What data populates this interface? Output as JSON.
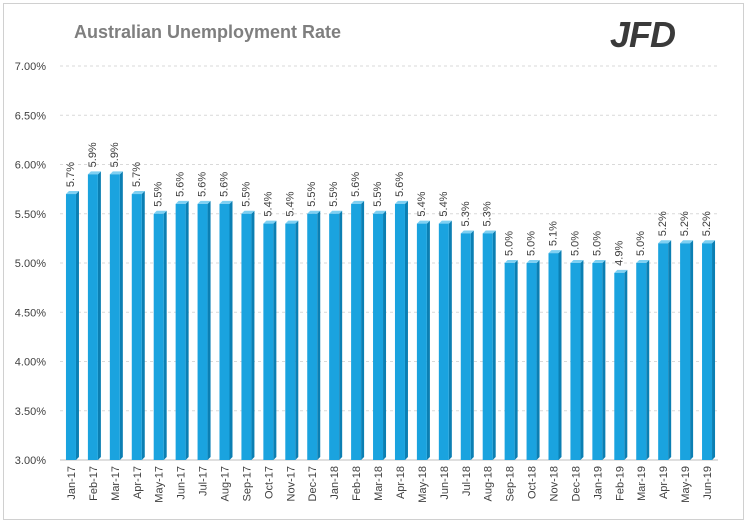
{
  "logo_text": "JFD",
  "chart_data": {
    "type": "bar",
    "title": "Australian Unemployment Rate",
    "xlabel": "",
    "ylabel": "",
    "ylim": [
      3.0,
      7.0
    ],
    "yticks": [
      "3.00%",
      "3.50%",
      "4.00%",
      "4.50%",
      "5.00%",
      "5.50%",
      "6.00%",
      "6.50%",
      "7.00%"
    ],
    "grid": true,
    "bar_color": "#1aa3df",
    "categories": [
      "Jan-17",
      "Feb-17",
      "Mar-17",
      "Apr-17",
      "May-17",
      "Jun-17",
      "Jul-17",
      "Aug-17",
      "Sep-17",
      "Oct-17",
      "Nov-17",
      "Dec-17",
      "Jan-18",
      "Feb-18",
      "Mar-18",
      "Apr-18",
      "May-18",
      "Jun-18",
      "Jul-18",
      "Aug-18",
      "Sep-18",
      "Oct-18",
      "Nov-18",
      "Dec-18",
      "Jan-19",
      "Feb-19",
      "Mar-19",
      "Apr-19",
      "May-19",
      "Jun-19"
    ],
    "values": [
      5.7,
      5.9,
      5.9,
      5.7,
      5.5,
      5.6,
      5.6,
      5.6,
      5.5,
      5.4,
      5.4,
      5.5,
      5.5,
      5.6,
      5.5,
      5.6,
      5.4,
      5.4,
      5.3,
      5.3,
      5.0,
      5.0,
      5.1,
      5.0,
      5.0,
      4.9,
      5.0,
      5.2,
      5.2,
      5.2
    ],
    "data_labels": [
      "5.7%",
      "5.9%",
      "5.9%",
      "5.7%",
      "5.5%",
      "5.6%",
      "5.6%",
      "5.6%",
      "5.5%",
      "5.4%",
      "5.4%",
      "5.5%",
      "5.5%",
      "5.6%",
      "5.5%",
      "5.6%",
      "5.4%",
      "5.4%",
      "5.3%",
      "5.3%",
      "5.0%",
      "5.0%",
      "5.1%",
      "5.0%",
      "5.0%",
      "4.9%",
      "5.0%",
      "5.2%",
      "5.2%",
      "5.2%"
    ]
  }
}
